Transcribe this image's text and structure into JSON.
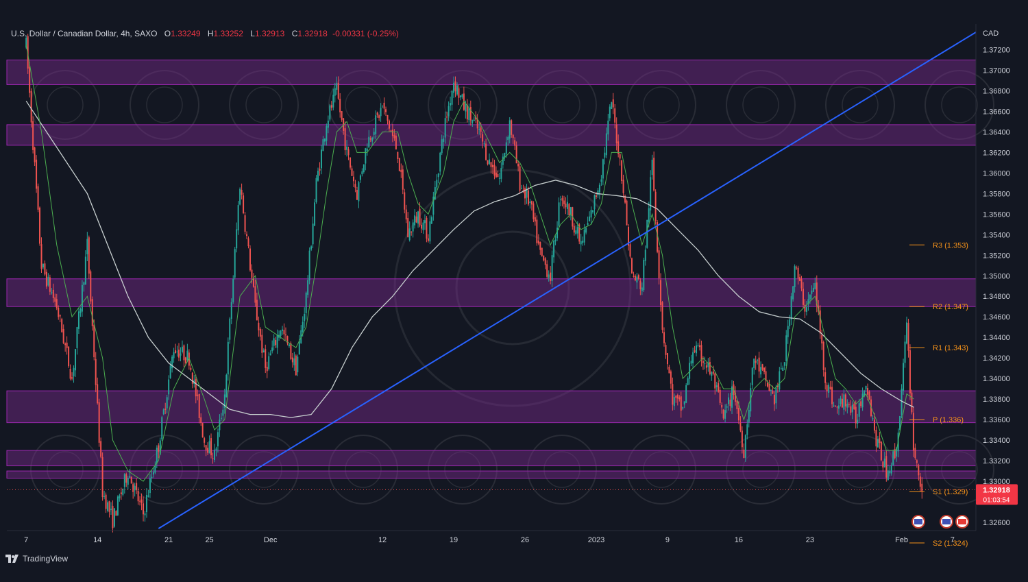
{
  "header": {
    "symbol": "U.S. Dollar / Canadian Dollar, 4h, SAXO",
    "open_label": "O",
    "open": "1.33249",
    "high_label": "H",
    "high": "1.33252",
    "low_label": "L",
    "low": "1.32913",
    "close_label": "C",
    "close": "1.32918",
    "change": "-0.00331 (-0.25%)"
  },
  "footer": {
    "brand": "TradingView",
    "logo_icon": "tradingview-logo-icon"
  },
  "colors": {
    "background": "#131722",
    "up_candle": "#26a69a",
    "down_candle": "#ef5350",
    "zone": "#7b2b8f",
    "trendline": "#2962ff",
    "pivot": "#f7931a",
    "ma_fast": "#4caf50",
    "ma_slow": "#c8d0d0"
  },
  "chart_data": {
    "type": "candlestick",
    "title": "",
    "currency": "CAD",
    "ylim": [
      1.3252,
      1.3745
    ],
    "y_ticks": [
      "1.37200",
      "1.37000",
      "1.36800",
      "1.36600",
      "1.36400",
      "1.36200",
      "1.36000",
      "1.35800",
      "1.35600",
      "1.35400",
      "1.35200",
      "1.35000",
      "1.34800",
      "1.34600",
      "1.34400",
      "1.34200",
      "1.34000",
      "1.33800",
      "1.33600",
      "1.33400",
      "1.33200",
      "1.33000",
      "1.32600"
    ],
    "y_tick_values": [
      1.372,
      1.37,
      1.368,
      1.366,
      1.364,
      1.362,
      1.36,
      1.358,
      1.356,
      1.354,
      1.352,
      1.35,
      1.348,
      1.346,
      1.344,
      1.342,
      1.34,
      1.338,
      1.336,
      1.334,
      1.332,
      1.33,
      1.326
    ],
    "x_ticks": [
      {
        "label": "7",
        "t": 0
      },
      {
        "label": "14",
        "t": 7
      },
      {
        "label": "21",
        "t": 14
      },
      {
        "label": "25",
        "t": 18
      },
      {
        "label": "Dec",
        "t": 24
      },
      {
        "label": "12",
        "t": 35
      },
      {
        "label": "19",
        "t": 42
      },
      {
        "label": "26",
        "t": 49
      },
      {
        "label": "2023",
        "t": 56
      },
      {
        "label": "9",
        "t": 63
      },
      {
        "label": "16",
        "t": 70
      },
      {
        "label": "23",
        "t": 77
      },
      {
        "label": "Feb",
        "t": 86
      },
      {
        "label": "7",
        "t": 91
      }
    ],
    "x_range": [
      -1.9,
      93.3
    ],
    "last_price": "1.32918",
    "last_price_value": 1.32918,
    "countdown": "01:03:54",
    "pivots": [
      {
        "label": "R3 (1.353)",
        "value": 1.353
      },
      {
        "label": "R2 (1.347)",
        "value": 1.347
      },
      {
        "label": "R1 (1.343)",
        "value": 1.343
      },
      {
        "label": "P (1.336)",
        "value": 1.336
      },
      {
        "label": "S1 (1.329)",
        "value": 1.329
      },
      {
        "label": "S2 (1.324)",
        "value": 1.324
      }
    ],
    "zones": [
      [
        1.3686,
        1.371
      ],
      [
        1.3627,
        1.3647
      ],
      [
        1.347,
        1.3497
      ],
      [
        1.3357,
        1.3388
      ],
      [
        1.3315,
        1.333
      ],
      [
        1.3303,
        1.331
      ]
    ],
    "trendline": {
      "t0": 13,
      "p0": 1.3254,
      "t1": 93.3,
      "p1": 1.3737
    },
    "path": [
      [
        0,
        1.3725
      ],
      [
        1.5,
        1.351
      ],
      [
        3,
        1.347
      ],
      [
        4.5,
        1.34
      ],
      [
        6,
        1.353
      ],
      [
        7.5,
        1.329
      ],
      [
        8.5,
        1.3262
      ],
      [
        10,
        1.331
      ],
      [
        11.5,
        1.3268
      ],
      [
        13,
        1.3335
      ],
      [
        14.5,
        1.343
      ],
      [
        16,
        1.342
      ],
      [
        17.5,
        1.334
      ],
      [
        18.5,
        1.3325
      ],
      [
        19.5,
        1.3385
      ],
      [
        21,
        1.359
      ],
      [
        22.5,
        1.347
      ],
      [
        23.5,
        1.341
      ],
      [
        25,
        1.345
      ],
      [
        26.5,
        1.341
      ],
      [
        27.5,
        1.348
      ],
      [
        28.5,
        1.359
      ],
      [
        29.5,
        1.365
      ],
      [
        30.5,
        1.368
      ],
      [
        31.5,
        1.362
      ],
      [
        32.5,
        1.358
      ],
      [
        33.5,
        1.363
      ],
      [
        35,
        1.3665
      ],
      [
        36.5,
        1.362
      ],
      [
        37.5,
        1.354
      ],
      [
        38.5,
        1.356
      ],
      [
        39.5,
        1.354
      ],
      [
        41,
        1.364
      ],
      [
        42,
        1.369
      ],
      [
        43,
        1.3665
      ],
      [
        44.5,
        1.364
      ],
      [
        45.5,
        1.361
      ],
      [
        46.5,
        1.3595
      ],
      [
        47.5,
        1.365
      ],
      [
        48.5,
        1.359
      ],
      [
        49.5,
        1.357
      ],
      [
        50.5,
        1.352
      ],
      [
        51.5,
        1.35
      ],
      [
        52.5,
        1.358
      ],
      [
        53.5,
        1.356
      ],
      [
        54.5,
        1.353
      ],
      [
        55.5,
        1.356
      ],
      [
        56.5,
        1.36
      ],
      [
        57.5,
        1.367
      ],
      [
        58.5,
        1.36
      ],
      [
        59.5,
        1.35
      ],
      [
        60.5,
        1.349
      ],
      [
        61.5,
        1.361
      ],
      [
        62.5,
        1.345
      ],
      [
        63.5,
        1.338
      ],
      [
        64.5,
        1.337
      ],
      [
        65.5,
        1.343
      ],
      [
        66.5,
        1.342
      ],
      [
        67.5,
        1.34
      ],
      [
        68.5,
        1.336
      ],
      [
        69.5,
        1.339
      ],
      [
        70.5,
        1.333
      ],
      [
        71.5,
        1.342
      ],
      [
        72.5,
        1.34
      ],
      [
        73.5,
        1.338
      ],
      [
        74.5,
        1.342
      ],
      [
        75.5,
        1.351
      ],
      [
        76.5,
        1.347
      ],
      [
        77.5,
        1.349
      ],
      [
        78.5,
        1.34
      ],
      [
        79.5,
        1.337
      ],
      [
        80.5,
        1.338
      ],
      [
        81.5,
        1.336
      ],
      [
        82.5,
        1.34
      ],
      [
        83.5,
        1.334
      ],
      [
        84.5,
        1.331
      ],
      [
        85.5,
        1.333
      ],
      [
        86.5,
        1.345
      ],
      [
        87.2,
        1.333
      ],
      [
        88,
        1.3292
      ]
    ],
    "ma_fast": [
      [
        0,
        1.3725
      ],
      [
        1.5,
        1.364
      ],
      [
        3,
        1.353
      ],
      [
        4.5,
        1.346
      ],
      [
        6,
        1.348
      ],
      [
        7.5,
        1.342
      ],
      [
        8.5,
        1.334
      ],
      [
        10,
        1.331
      ],
      [
        11.5,
        1.33
      ],
      [
        13,
        1.332
      ],
      [
        14.5,
        1.339
      ],
      [
        16,
        1.342
      ],
      [
        17.5,
        1.338
      ],
      [
        18.5,
        1.335
      ],
      [
        19.5,
        1.336
      ],
      [
        21,
        1.348
      ],
      [
        22.5,
        1.35
      ],
      [
        23.5,
        1.345
      ],
      [
        25,
        1.344
      ],
      [
        26.5,
        1.343
      ],
      [
        27.5,
        1.345
      ],
      [
        28.5,
        1.351
      ],
      [
        29.5,
        1.358
      ],
      [
        30.5,
        1.364
      ],
      [
        31.5,
        1.365
      ],
      [
        32.5,
        1.362
      ],
      [
        33.5,
        1.362
      ],
      [
        35,
        1.364
      ],
      [
        36.5,
        1.364
      ],
      [
        37.5,
        1.36
      ],
      [
        38.5,
        1.357
      ],
      [
        39.5,
        1.356
      ],
      [
        41,
        1.36
      ],
      [
        42,
        1.365
      ],
      [
        43,
        1.367
      ],
      [
        44.5,
        1.365
      ],
      [
        45.5,
        1.363
      ],
      [
        46.5,
        1.361
      ],
      [
        47.5,
        1.362
      ],
      [
        48.5,
        1.361
      ],
      [
        49.5,
        1.359
      ],
      [
        50.5,
        1.356
      ],
      [
        51.5,
        1.353
      ],
      [
        52.5,
        1.355
      ],
      [
        53.5,
        1.356
      ],
      [
        54.5,
        1.3545
      ],
      [
        55.5,
        1.355
      ],
      [
        56.5,
        1.357
      ],
      [
        57.5,
        1.362
      ],
      [
        58.5,
        1.362
      ],
      [
        59.5,
        1.357
      ],
      [
        60.5,
        1.353
      ],
      [
        61.5,
        1.356
      ],
      [
        62.5,
        1.352
      ],
      [
        63.5,
        1.345
      ],
      [
        64.5,
        1.34
      ],
      [
        65.5,
        1.341
      ],
      [
        66.5,
        1.342
      ],
      [
        67.5,
        1.341
      ],
      [
        68.5,
        1.339
      ],
      [
        69.5,
        1.339
      ],
      [
        70.5,
        1.336
      ],
      [
        71.5,
        1.339
      ],
      [
        72.5,
        1.34
      ],
      [
        73.5,
        1.339
      ],
      [
        74.5,
        1.34
      ],
      [
        75.5,
        1.346
      ],
      [
        76.5,
        1.347
      ],
      [
        77.5,
        1.348
      ],
      [
        78.5,
        1.344
      ],
      [
        79.5,
        1.34
      ],
      [
        80.5,
        1.339
      ],
      [
        81.5,
        1.3375
      ],
      [
        82.5,
        1.3385
      ],
      [
        83.5,
        1.336
      ],
      [
        84.5,
        1.333
      ],
      [
        85.5,
        1.333
      ],
      [
        86.5,
        1.3385
      ],
      [
        87.2,
        1.338
      ]
    ],
    "ma_slow": [
      [
        0,
        1.367
      ],
      [
        2,
        1.364
      ],
      [
        4,
        1.361
      ],
      [
        6,
        1.358
      ],
      [
        8,
        1.353
      ],
      [
        10,
        1.348
      ],
      [
        12,
        1.344
      ],
      [
        14,
        1.3415
      ],
      [
        16,
        1.34
      ],
      [
        18,
        1.3385
      ],
      [
        20,
        1.337
      ],
      [
        22,
        1.3365
      ],
      [
        24,
        1.3365
      ],
      [
        26,
        1.3362
      ],
      [
        28,
        1.3365
      ],
      [
        30,
        1.339
      ],
      [
        32,
        1.343
      ],
      [
        34,
        1.346
      ],
      [
        36,
        1.348
      ],
      [
        38,
        1.3505
      ],
      [
        40,
        1.3525
      ],
      [
        42,
        1.3545
      ],
      [
        44,
        1.3563
      ],
      [
        46,
        1.3572
      ],
      [
        48,
        1.3578
      ],
      [
        50,
        1.3588
      ],
      [
        52,
        1.3593
      ],
      [
        54,
        1.3588
      ],
      [
        56,
        1.358
      ],
      [
        58,
        1.3578
      ],
      [
        60,
        1.3575
      ],
      [
        62,
        1.3565
      ],
      [
        64,
        1.3545
      ],
      [
        66,
        1.3525
      ],
      [
        68,
        1.35
      ],
      [
        70,
        1.348
      ],
      [
        72,
        1.3465
      ],
      [
        74,
        1.346
      ],
      [
        76,
        1.3458
      ],
      [
        78,
        1.3445
      ],
      [
        80,
        1.3425
      ],
      [
        82,
        1.3405
      ],
      [
        84,
        1.339
      ],
      [
        86,
        1.3378
      ],
      [
        87.2,
        1.3372
      ]
    ]
  }
}
